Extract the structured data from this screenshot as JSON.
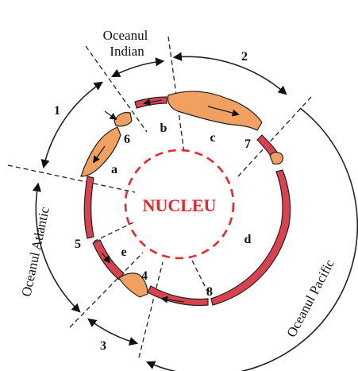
{
  "colors": {
    "nucleus_border": "#e8262b",
    "nucleus_text": "#e8262b",
    "continental_fill": "#f0a060",
    "oceanic_fill": "#d9424e",
    "outline": "#222222"
  },
  "nucleus": {
    "label": "NUCLEU"
  },
  "oceans": {
    "indian": {
      "line1": "Oceanul",
      "line2": "Indian"
    },
    "atlantic": {
      "label": "Oceanul Atlantic"
    },
    "pacific": {
      "label": "Oceanul  Pacific"
    }
  },
  "zone_numbers": {
    "z1": "1",
    "z2": "2",
    "z3": "3"
  },
  "point_numbers": {
    "p4": "4",
    "p5": "5",
    "p6": "6",
    "p7": "7",
    "p8": "8"
  },
  "sector_letters": {
    "a": "a",
    "b": "b",
    "c": "c",
    "d": "d",
    "e": "e"
  }
}
